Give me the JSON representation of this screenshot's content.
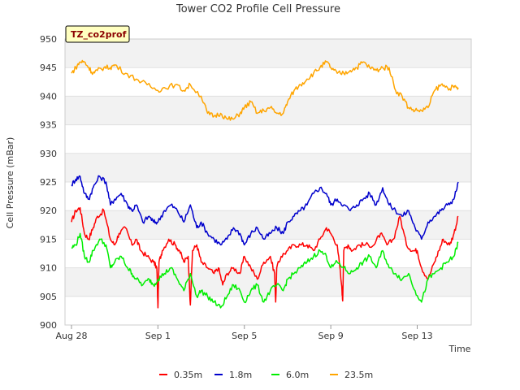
{
  "chart_data": {
    "type": "line",
    "title": "Tower CO2 Profile Cell Pressure",
    "xlabel": "Time",
    "ylabel": "Cell Pressure (mBar)",
    "site_badge": "TZ_co2prof",
    "ylim": [
      900,
      950
    ],
    "yticks": [
      900,
      905,
      910,
      915,
      920,
      925,
      930,
      935,
      940,
      945,
      950
    ],
    "xlim_days": [
      -0.3,
      18.5
    ],
    "xticks": [
      {
        "day": 0,
        "label": "Aug 28"
      },
      {
        "day": 4,
        "label": "Sep 1"
      },
      {
        "day": 8,
        "label": "Sep 5"
      },
      {
        "day": 12,
        "label": "Sep 9"
      },
      {
        "day": 16,
        "label": "Sep 13"
      }
    ],
    "grid": true,
    "legend_position": "bottom",
    "series": [
      {
        "name": "0.35m",
        "color": "#ff0000",
        "x": [
          0,
          0.2,
          0.4,
          0.6,
          0.8,
          1,
          1.2,
          1.5,
          1.8,
          2,
          2.2,
          2.5,
          2.8,
          3,
          3.2,
          3.5,
          3.8,
          3.95,
          4,
          4.05,
          4.2,
          4.5,
          4.8,
          5,
          5.2,
          5.4,
          5.5,
          5.6,
          5.8,
          6,
          6.3,
          6.6,
          6.8,
          7,
          7.2,
          7.5,
          7.8,
          8,
          8.3,
          8.6,
          8.9,
          9.2,
          9.4,
          9.45,
          9.5,
          9.7,
          10,
          10.3,
          10.6,
          10.9,
          11.2,
          11.5,
          11.8,
          12,
          12.3,
          12.5,
          12.55,
          12.6,
          12.8,
          13,
          13.3,
          13.6,
          14,
          14.3,
          14.6,
          14.9,
          15.2,
          15.5,
          15.8,
          16,
          16.2,
          16.5,
          16.8,
          17,
          17.2,
          17.5,
          17.7,
          17.9
        ],
        "y": [
          918,
          920,
          920.5,
          916,
          915,
          917,
          919,
          920,
          915,
          914,
          916,
          917,
          914,
          915,
          913,
          912,
          911,
          910,
          903,
          911,
          913,
          915,
          914,
          913,
          911,
          912,
          903.5,
          913,
          914,
          911,
          910,
          909,
          910,
          907,
          909,
          910,
          909,
          912,
          910,
          908,
          911,
          912,
          909,
          904,
          910,
          912,
          913,
          914,
          914,
          914,
          913,
          915,
          917,
          916,
          914,
          907,
          904.2,
          913,
          914,
          913,
          914,
          914,
          914,
          916,
          914,
          915,
          919,
          914,
          913,
          913,
          910,
          908,
          911,
          913,
          915,
          914,
          916,
          919
        ]
      },
      {
        "name": "1.8m",
        "color": "#0000cc",
        "x": [
          0,
          0.2,
          0.4,
          0.6,
          0.8,
          1,
          1.3,
          1.6,
          1.8,
          2,
          2.3,
          2.6,
          2.8,
          3,
          3.3,
          3.6,
          3.8,
          4,
          4.3,
          4.6,
          4.9,
          5.2,
          5.5,
          5.8,
          6,
          6.3,
          6.6,
          6.9,
          7.2,
          7.5,
          7.8,
          8,
          8.3,
          8.6,
          8.9,
          9.2,
          9.5,
          9.8,
          10,
          10.3,
          10.6,
          10.9,
          11.2,
          11.5,
          11.8,
          12,
          12.3,
          12.6,
          12.9,
          13.2,
          13.5,
          13.8,
          14.1,
          14.4,
          14.7,
          15,
          15.3,
          15.6,
          15.9,
          16.2,
          16.5,
          16.8,
          17.1,
          17.4,
          17.7,
          17.9
        ],
        "y": [
          924.5,
          925.5,
          926,
          923,
          922,
          924,
          926,
          925,
          921,
          922,
          923,
          921,
          920,
          921,
          918,
          919,
          918,
          918,
          920,
          921,
          920,
          918,
          921,
          917,
          918,
          916,
          915,
          914,
          915,
          917,
          916,
          914,
          916,
          917,
          915,
          916,
          917,
          916,
          918,
          919,
          920,
          921,
          923,
          924,
          923,
          921,
          922,
          921,
          920,
          921,
          922,
          923,
          921,
          924,
          921,
          920,
          919,
          920,
          917,
          915,
          918,
          919,
          920,
          921,
          922,
          925
        ]
      },
      {
        "name": "6.0m",
        "color": "#00ee00",
        "x": [
          0,
          0.2,
          0.4,
          0.6,
          0.8,
          1,
          1.3,
          1.6,
          1.8,
          2,
          2.3,
          2.6,
          2.8,
          3,
          3.3,
          3.6,
          3.8,
          4,
          4.3,
          4.6,
          4.9,
          5.2,
          5.5,
          5.8,
          6,
          6.3,
          6.6,
          6.9,
          7.2,
          7.5,
          7.8,
          8,
          8.3,
          8.6,
          8.9,
          9.2,
          9.5,
          9.8,
          10,
          10.3,
          10.6,
          10.9,
          11.2,
          11.5,
          11.8,
          12,
          12.3,
          12.6,
          12.9,
          13.2,
          13.5,
          13.8,
          14.1,
          14.4,
          14.7,
          15,
          15.3,
          15.6,
          15.9,
          16.2,
          16.5,
          16.8,
          17.1,
          17.4,
          17.7,
          17.9
        ],
        "y": [
          913.5,
          914,
          916,
          912,
          911,
          913,
          915,
          914,
          910,
          911,
          912,
          910,
          909,
          908,
          907,
          908,
          907,
          908,
          909,
          910,
          908,
          906,
          909,
          905,
          906,
          905,
          904,
          903,
          905,
          907,
          906,
          904,
          906,
          907,
          904,
          906,
          907,
          906,
          908,
          909,
          910,
          911,
          912,
          913,
          912,
          910,
          911,
          910,
          909,
          910,
          911,
          912,
          910,
          913,
          910,
          909,
          908,
          909,
          906,
          904,
          908,
          909,
          910,
          911,
          912,
          914.5
        ]
      },
      {
        "name": "23.5m",
        "color": "#ffa500",
        "x": [
          0,
          0.2,
          0.4,
          0.6,
          0.8,
          1,
          1.2,
          1.5,
          1.8,
          2,
          2.5,
          3,
          3.5,
          4,
          4.3,
          4.8,
          5.2,
          5.5,
          6,
          6.3,
          6.6,
          6.9,
          7.2,
          7.5,
          7.8,
          8,
          8.3,
          8.6,
          8.9,
          9.2,
          9.5,
          9.8,
          10,
          10.3,
          10.6,
          10.9,
          11.2,
          11.5,
          11.8,
          12,
          12.3,
          12.6,
          12.9,
          13.2,
          13.5,
          13.8,
          14.1,
          14.4,
          14.7,
          15,
          15.3,
          15.6,
          15.9,
          16.2,
          16.5,
          16.8,
          17.1,
          17.4,
          17.7,
          17.9
        ],
        "y": [
          944,
          945,
          946,
          946,
          945,
          944,
          944.5,
          945,
          945,
          945.5,
          944,
          943,
          942,
          941,
          941.5,
          942,
          941,
          942,
          940,
          937,
          936.5,
          937,
          936,
          936,
          937,
          938,
          939,
          937,
          937.5,
          938,
          937,
          937,
          939,
          941,
          942,
          943,
          944,
          945,
          946,
          945,
          944,
          944,
          944.5,
          945,
          946,
          945,
          944.5,
          945,
          945,
          941,
          940,
          938,
          937.5,
          937.5,
          938,
          941,
          942,
          941.5,
          941.5,
          941.5
        ]
      }
    ]
  }
}
